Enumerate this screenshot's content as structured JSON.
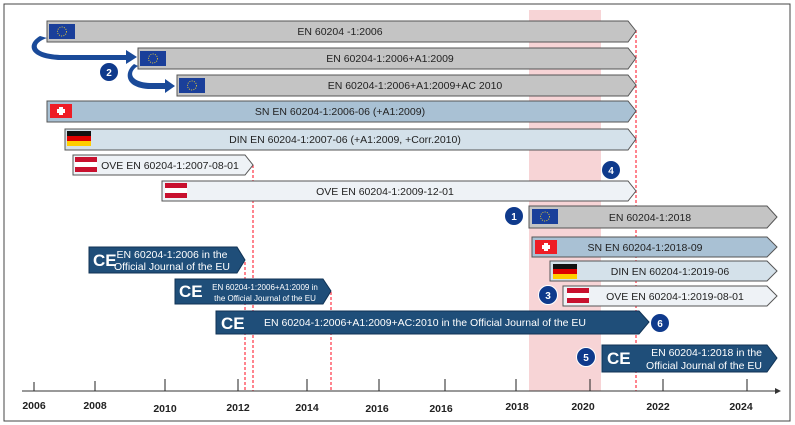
{
  "colors": {
    "eu_bar": "#c4c4c4",
    "sn_bar": "#a9c1d4",
    "din_bar": "#d4e1ea",
    "ove_bar": "#eef2f6",
    "ce_bar": "#1f4e79",
    "circle": "#0f3a8c",
    "highlight": "#f4c6c8",
    "dashed": "#ff3344"
  },
  "standards": [
    {
      "label": "EN 60204 -1:2006",
      "flag": "eu-flag-icon"
    },
    {
      "label": "EN 60204-1:2006+A1:2009",
      "flag": "eu-flag-icon"
    },
    {
      "label": "EN 60204-1:2006+A1:2009+AC 2010",
      "flag": "eu-flag-icon"
    },
    {
      "label": "SN EN 60204-1:2006-06 (+A1:2009)",
      "flag": "swiss-flag-icon"
    },
    {
      "label": "DIN EN 60204-1:2007-06 (+A1:2009, +Corr.2010)",
      "flag": "german-flag-icon"
    },
    {
      "label": "OVE EN 60204-1:2007-08-01",
      "flag": "austrian-flag-icon"
    },
    {
      "label": "OVE EN 60204-1:2009-12-01",
      "flag": "austrian-flag-icon"
    },
    {
      "label": "EN 60204-1:2018",
      "flag": "eu-flag-icon"
    },
    {
      "label": "SN EN 60204-1:2018-09",
      "flag": "swiss-flag-icon"
    },
    {
      "label": "DIN EN 60204-1:2019-06",
      "flag": "german-flag-icon"
    },
    {
      "label": "OVE EN 60204-1:2019-08-01",
      "flag": "austrian-flag-icon"
    }
  ],
  "official_journal": [
    {
      "line1": "EN 60204-1:2006 in the",
      "line2": "Official Journal of the EU"
    },
    {
      "line1": "EN 60204-1:2006+A1:2009 in",
      "line2": "the Official Journal of the EU"
    },
    {
      "line1": "EN 60204-1:2006+A1:2009+AC:2010 in the Official Journal of the EU"
    },
    {
      "line1": "EN 60204-1:2018 in the",
      "line2": "Official Journal of the EU"
    }
  ],
  "ce_mark": "CE",
  "markers": [
    "1",
    "2",
    "3",
    "4",
    "5",
    "6"
  ],
  "axis": {
    "ticks": [
      "2006",
      "2008",
      "2010",
      "2012",
      "2014",
      "2016",
      "2016",
      "2018",
      "2020",
      "2022",
      "2024"
    ]
  }
}
